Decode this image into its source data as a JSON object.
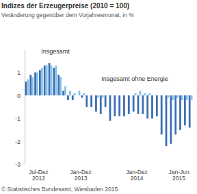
{
  "chart_data": {
    "type": "bar",
    "title": "Indizes der Erzeugerpreise (2010 = 100)",
    "subtitle": "Veränderung gegenüber dem Vorjahresmonat, in %",
    "source": "© Statistisches Bundesamt, Wiesbaden 2015",
    "categories": [
      null,
      null,
      "Jul-Dez 2012",
      null,
      null,
      null,
      null,
      null,
      null,
      null,
      null,
      "Jan-Dez 2013",
      null,
      null,
      null,
      null,
      null,
      null,
      null,
      null,
      null,
      null,
      null,
      "Jan-Dez 2014",
      null,
      null,
      null,
      null,
      null,
      null,
      null,
      null,
      "Jan-Jun 2015",
      null,
      null,
      null
    ],
    "series": [
      {
        "name": "Insgesamt",
        "color": "#3c6eb4",
        "values": [
          0.6,
          0.9,
          1.0,
          1.1,
          1.3,
          1.4,
          1.2,
          0.9,
          0.2,
          -0.2,
          -0.2,
          0.0,
          -0.1,
          -0.5,
          -0.5,
          -0.7,
          -0.8,
          -0.5,
          -1.1,
          -0.9,
          -0.9,
          -0.9,
          -0.8,
          -0.7,
          -0.8,
          -0.8,
          -1.0,
          -1.0,
          -0.9,
          -1.7,
          -2.2,
          -2.1,
          -1.7,
          -1.5,
          -1.3,
          -1.4
        ]
      },
      {
        "name": "Insgesamt ohne Energie",
        "color": "#87c1ea",
        "values": [
          0.7,
          0.8,
          1.0,
          1.2,
          1.3,
          1.3,
          1.3,
          0.8,
          0.4,
          0.2,
          0.1,
          0.2,
          0.1,
          0.0,
          0.0,
          -0.1,
          -0.1,
          0.0,
          0.0,
          0.0,
          0.0,
          0.0,
          0.0,
          0.1,
          0.2,
          0.1,
          0.1,
          0.0,
          0.0,
          0.0,
          -0.1,
          -0.2,
          -0.1,
          -0.2,
          -0.2,
          -0.2
        ]
      }
    ],
    "ylim": [
      -3,
      2
    ],
    "yticks": [
      -3,
      -2,
      -1,
      0,
      1
    ],
    "grid": false
  }
}
